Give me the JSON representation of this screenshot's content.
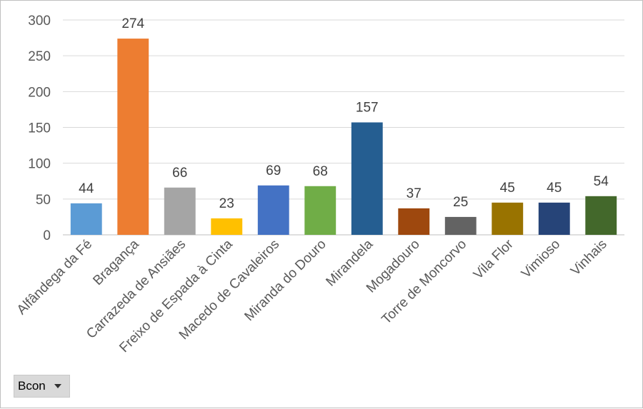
{
  "chart_data": {
    "type": "bar",
    "categories": [
      "Alfândega da Fé",
      "Bragança",
      "Carrazeda de Ansiães",
      "Freixo de Espada à Cinta",
      "Macedo de Cavaleiros",
      "Miranda do Douro",
      "Mirandela",
      "Mogadouro",
      "Torre de Moncorvo",
      "Vila Flor",
      "Vimioso",
      "Vinhais"
    ],
    "values": [
      44,
      274,
      66,
      23,
      69,
      68,
      157,
      37,
      25,
      45,
      45,
      54
    ],
    "colors": [
      "#5b9bd5",
      "#ed7d31",
      "#a5a5a5",
      "#ffc000",
      "#4472c4",
      "#70ad47",
      "#255e91",
      "#9e480e",
      "#636363",
      "#997300",
      "#264478",
      "#43682b"
    ],
    "yticks": [
      0,
      50,
      100,
      150,
      200,
      250,
      300
    ],
    "ylim": [
      0,
      300
    ],
    "title": "",
    "xlabel": "",
    "ylabel": "",
    "grid": true,
    "legend": "none"
  },
  "filter": {
    "label": "Bcon",
    "icon": "dropdown-arrow-icon"
  }
}
